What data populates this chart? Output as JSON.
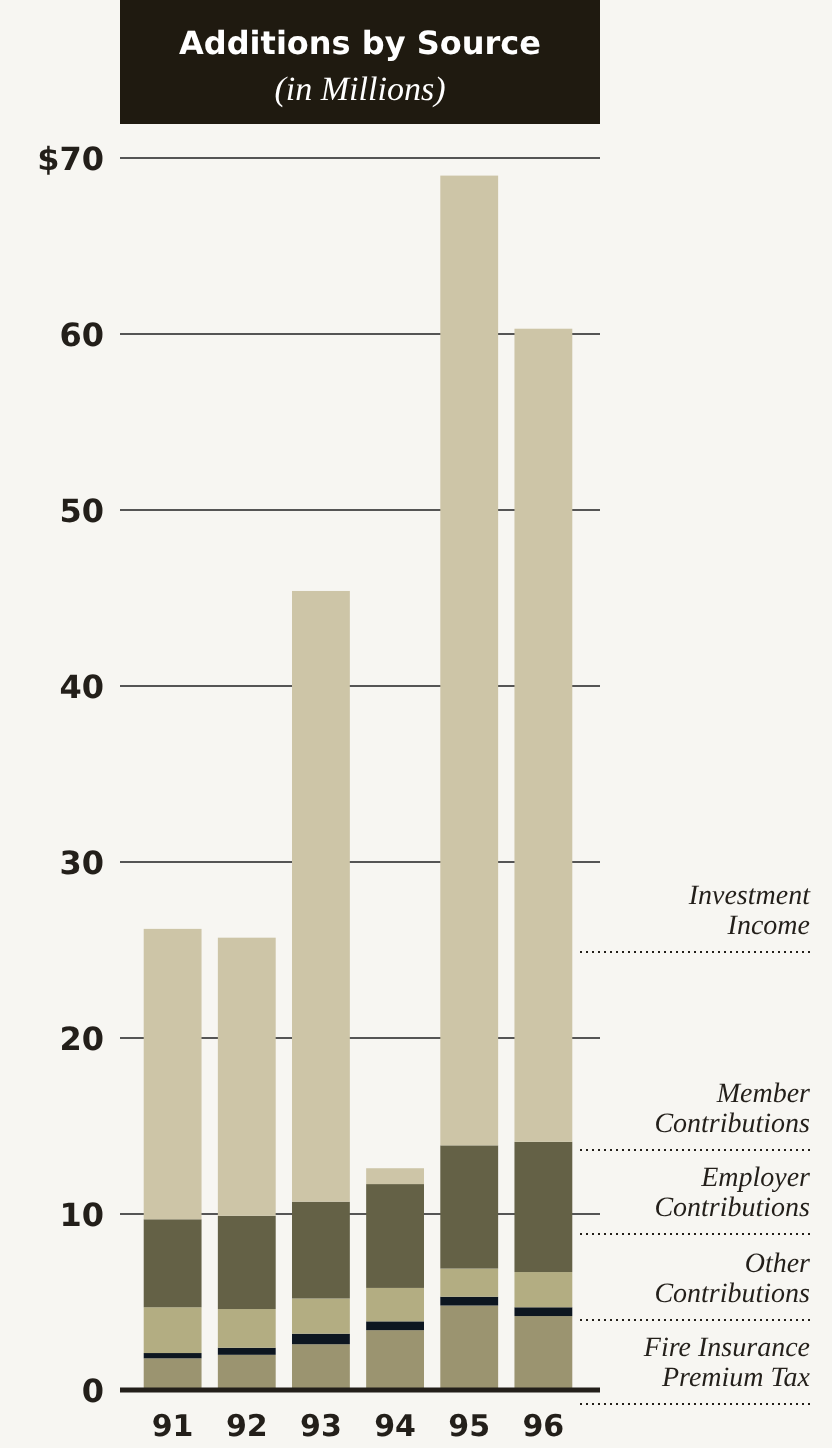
{
  "chart_data": {
    "type": "bar",
    "title": "Additions by Source",
    "subtitle": "(in Millions)",
    "categories": [
      "91",
      "92",
      "93",
      "94",
      "95",
      "96"
    ],
    "stacked": true,
    "series": [
      {
        "name": "Fire Insurance Premium Tax",
        "color": "#9b9470",
        "values": [
          1.8,
          2.0,
          2.6,
          3.4,
          4.8,
          4.2
        ]
      },
      {
        "name": "Other Contributions",
        "color": "#0d1620",
        "values": [
          0.3,
          0.4,
          0.6,
          0.5,
          0.5,
          0.5
        ]
      },
      {
        "name": "Employer Contributions",
        "color": "#b3ad82",
        "values": [
          2.6,
          2.2,
          2.0,
          1.9,
          1.6,
          2.0
        ]
      },
      {
        "name": "Member Contributions",
        "color": "#646146",
        "values": [
          5.0,
          5.3,
          5.5,
          5.9,
          7.0,
          7.4
        ]
      },
      {
        "name": "Investment Income",
        "color": "#cdc5a7",
        "values": [
          16.5,
          15.8,
          34.7,
          0.9,
          55.1,
          46.2
        ]
      }
    ],
    "ylim": [
      0,
      70
    ],
    "yticks": [
      0,
      10,
      20,
      30,
      40,
      50,
      60,
      {
        "value": 70,
        "label": "$70"
      }
    ],
    "grid": "y",
    "legend": "right"
  }
}
